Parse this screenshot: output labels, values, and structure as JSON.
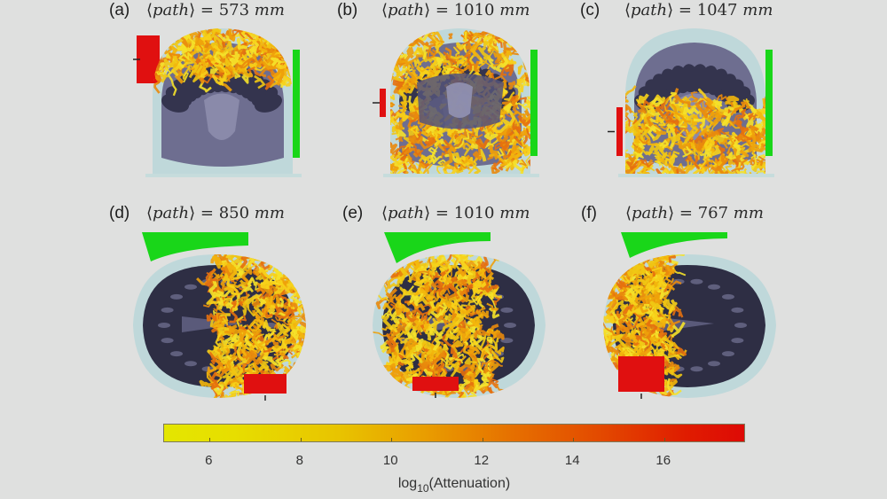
{
  "figure": {
    "panels": [
      {
        "letter": "(a)",
        "quantity": "path",
        "equals": "=",
        "value": "573",
        "unit": "mm",
        "view": "coronal",
        "source_side": "left",
        "detector_side": "right"
      },
      {
        "letter": "(b)",
        "quantity": "path",
        "equals": "=",
        "value": "1010",
        "unit": "mm",
        "view": "coronal",
        "source_side": "left",
        "detector_side": "right"
      },
      {
        "letter": "(c)",
        "quantity": "path",
        "equals": "=",
        "value": "1047",
        "unit": "mm",
        "view": "coronal",
        "source_side": "left",
        "detector_side": "right"
      },
      {
        "letter": "(d)",
        "quantity": "path",
        "equals": "=",
        "value": "850",
        "unit": "mm",
        "view": "axial",
        "source_side": "bottom",
        "detector_side": "top"
      },
      {
        "letter": "(e)",
        "quantity": "path",
        "equals": "=",
        "value": "1010",
        "unit": "mm",
        "view": "axial",
        "source_side": "bottom",
        "detector_side": "top"
      },
      {
        "letter": "(f)",
        "quantity": "path",
        "equals": "=",
        "value": "767",
        "unit": "mm",
        "view": "axial",
        "source_side": "bottom",
        "detector_side": "top"
      }
    ],
    "colorbar": {
      "label_main": "log",
      "label_sub": "10",
      "label_rest": "(Attenuation)",
      "ticks": [
        "6",
        "8",
        "10",
        "12",
        "14",
        "16"
      ],
      "range": [
        5,
        17.8
      ],
      "colors": {
        "low": "#e4e600",
        "mid": "#e99d00",
        "high": "#de0a06"
      }
    },
    "colors": {
      "background": "#dfe0df",
      "source": "#e01010",
      "detector": "#19d619",
      "scalp": "#bfd8da",
      "brain": "#505070",
      "paths": "#f2c20c"
    }
  }
}
